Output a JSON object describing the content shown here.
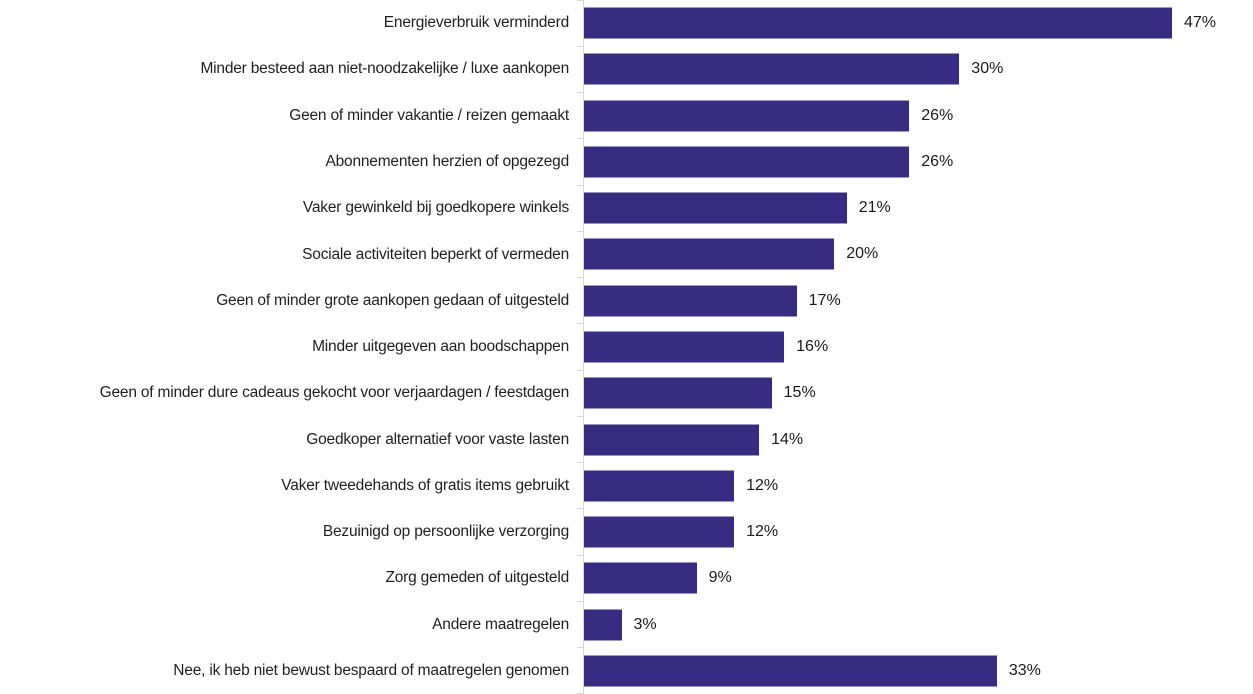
{
  "chart_data": {
    "type": "bar",
    "orientation": "horizontal",
    "title": "",
    "xlabel": "",
    "ylabel": "",
    "legend": false,
    "grid": false,
    "xlim": [
      0,
      53.5
    ],
    "bar_color": "#372b82",
    "axis_color": "#d6d6d6",
    "label_color": "#1f1f1f",
    "categories": [
      "Energieverbruik verminderd",
      "Minder besteed aan niet-noodzakelijke / luxe aankopen",
      "Geen of minder vakantie / reizen gemaakt",
      "Abonnementen herzien of opgezegd",
      "Vaker gewinkeld bij goedkopere winkels",
      "Sociale activiteiten beperkt of vermeden",
      "Geen of minder grote aankopen gedaan of uitgesteld",
      "Minder uitgegeven aan boodschappen",
      "Geen of minder dure cadeaus gekocht voor verjaardagen / feestdagen",
      "Goedkoper alternatief voor vaste lasten",
      "Vaker tweedehands of gratis items gebruikt",
      "Bezuinigd op persoonlijke verzorging",
      "Zorg gemeden of uitgesteld",
      "Andere maatregelen",
      "Nee, ik heb niet bewust bespaard of maatregelen genomen"
    ],
    "values": [
      47,
      30,
      26,
      26,
      21,
      20,
      17,
      16,
      15,
      14,
      12,
      12,
      9,
      3,
      33
    ],
    "value_labels": [
      "47%",
      "30%",
      "26%",
      "26%",
      "21%",
      "20%",
      "17%",
      "16%",
      "15%",
      "14%",
      "12%",
      "12%",
      "9%",
      "3%",
      "33%"
    ]
  }
}
